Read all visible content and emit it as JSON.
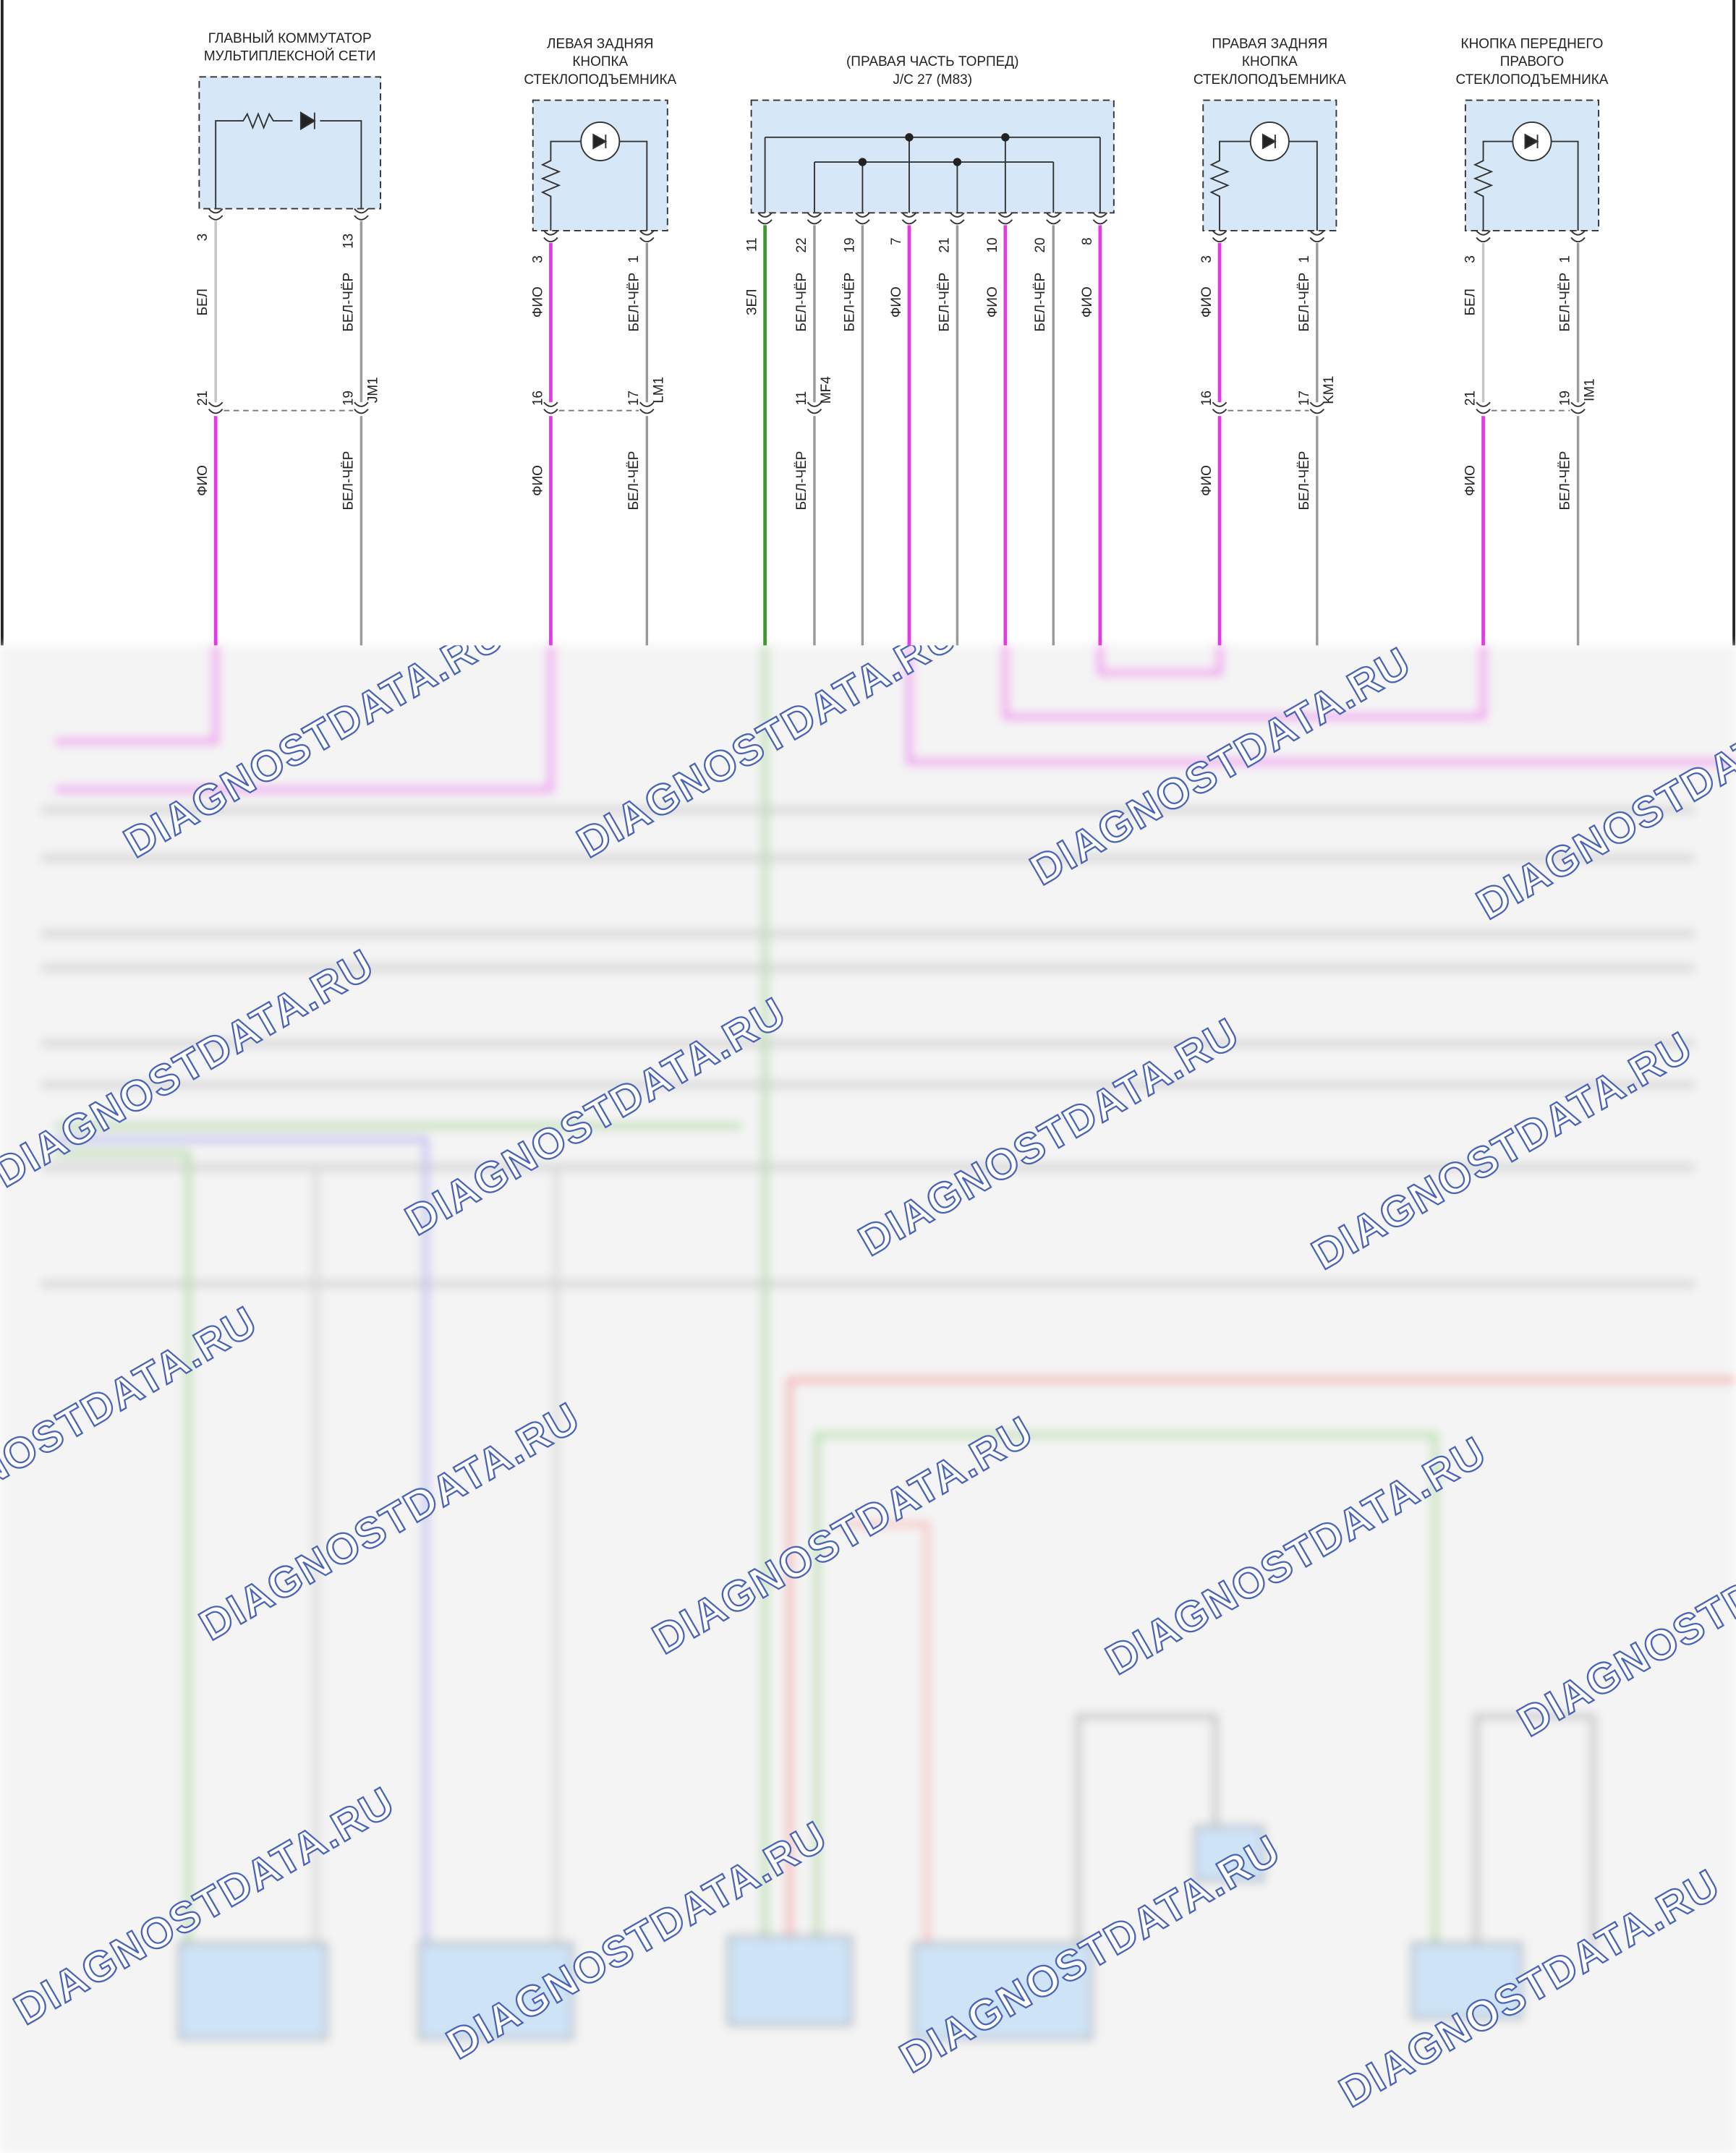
{
  "components": [
    {
      "title": [
        "ГЛАВНЫЙ КОММУТАТОР",
        "МУЛЬТИПЛЕКСНОЙ СЕТИ"
      ],
      "connector": "JM1",
      "pins": [
        {
          "pin": 3,
          "wire": "БЕЛ",
          "color": "#c4c4c4",
          "conn_pin": 21,
          "lower_wire": "ФИО",
          "lower_color": "#e23be2"
        },
        {
          "pin": 13,
          "wire": "БЕЛ-ЧЁР",
          "color": "#9a9a9a",
          "conn_pin": 19,
          "lower_wire": "БЕЛ-ЧЁР",
          "lower_color": "#9a9a9a"
        }
      ]
    },
    {
      "title": [
        "ЛЕВАЯ ЗАДНЯЯ",
        "КНОПКА",
        "СТЕКЛОПОДЪЕМНИКА"
      ],
      "connector": "LM1",
      "pins": [
        {
          "pin": 3,
          "wire": "ФИО",
          "color": "#e23be2",
          "conn_pin": 16,
          "lower_wire": "ФИО",
          "lower_color": "#e23be2"
        },
        {
          "pin": 1,
          "wire": "БЕЛ-ЧЁР",
          "color": "#9a9a9a",
          "conn_pin": 17,
          "lower_wire": "БЕЛ-ЧЁР",
          "lower_color": "#9a9a9a"
        }
      ]
    },
    {
      "title": [
        "(ПРАВАЯ ЧАСТЬ ТОРПЕД)",
        "J/C 27 (M83)"
      ],
      "connector": "MF4",
      "pins": [
        {
          "pin": 11,
          "wire": "ЗЕЛ",
          "color": "#3c9a2e"
        },
        {
          "pin": 22,
          "wire": "БЕЛ-ЧЁР",
          "color": "#9a9a9a",
          "conn_pin": 11,
          "lower_wire": "БЕЛ-ЧЁР",
          "lower_color": "#9a9a9a"
        },
        {
          "pin": 19,
          "wire": "БЕЛ-ЧЁР",
          "color": "#9a9a9a"
        },
        {
          "pin": 7,
          "wire": "ФИО",
          "color": "#e23be2"
        },
        {
          "pin": 21,
          "wire": "БЕЛ-ЧЁР",
          "color": "#9a9a9a"
        },
        {
          "pin": 10,
          "wire": "ФИО",
          "color": "#e23be2"
        },
        {
          "pin": 20,
          "wire": "БЕЛ-ЧЁР",
          "color": "#9a9a9a"
        },
        {
          "pin": 8,
          "wire": "ФИО",
          "color": "#e23be2"
        }
      ]
    },
    {
      "title": [
        "ПРАВАЯ ЗАДНЯЯ",
        "КНОПКА",
        "СТЕКЛОПОДЪЕМНИКА"
      ],
      "connector": "KM1",
      "pins": [
        {
          "pin": 3,
          "wire": "ФИО",
          "color": "#e23be2",
          "conn_pin": 16,
          "lower_wire": "ФИО",
          "lower_color": "#e23be2"
        },
        {
          "pin": 1,
          "wire": "БЕЛ-ЧЁР",
          "color": "#9a9a9a",
          "conn_pin": 17,
          "lower_wire": "БЕЛ-ЧЁР",
          "lower_color": "#9a9a9a"
        }
      ]
    },
    {
      "title": [
        "КНОПКА ПЕРЕДНЕГО",
        "ПРАВОГО",
        "СТЕКЛОПОДЪЕМНИКА"
      ],
      "connector": "IM1",
      "pins": [
        {
          "pin": 3,
          "wire": "БЕЛ",
          "color": "#c4c4c4",
          "conn_pin": 21,
          "lower_wire": "ФИО",
          "lower_color": "#e23be2"
        },
        {
          "pin": 1,
          "wire": "БЕЛ-ЧЁР",
          "color": "#9a9a9a",
          "conn_pin": 19,
          "lower_wire": "БЕЛ-ЧЁР",
          "lower_color": "#9a9a9a"
        }
      ]
    }
  ],
  "watermark": "DIAGNOSTDATA.RU"
}
